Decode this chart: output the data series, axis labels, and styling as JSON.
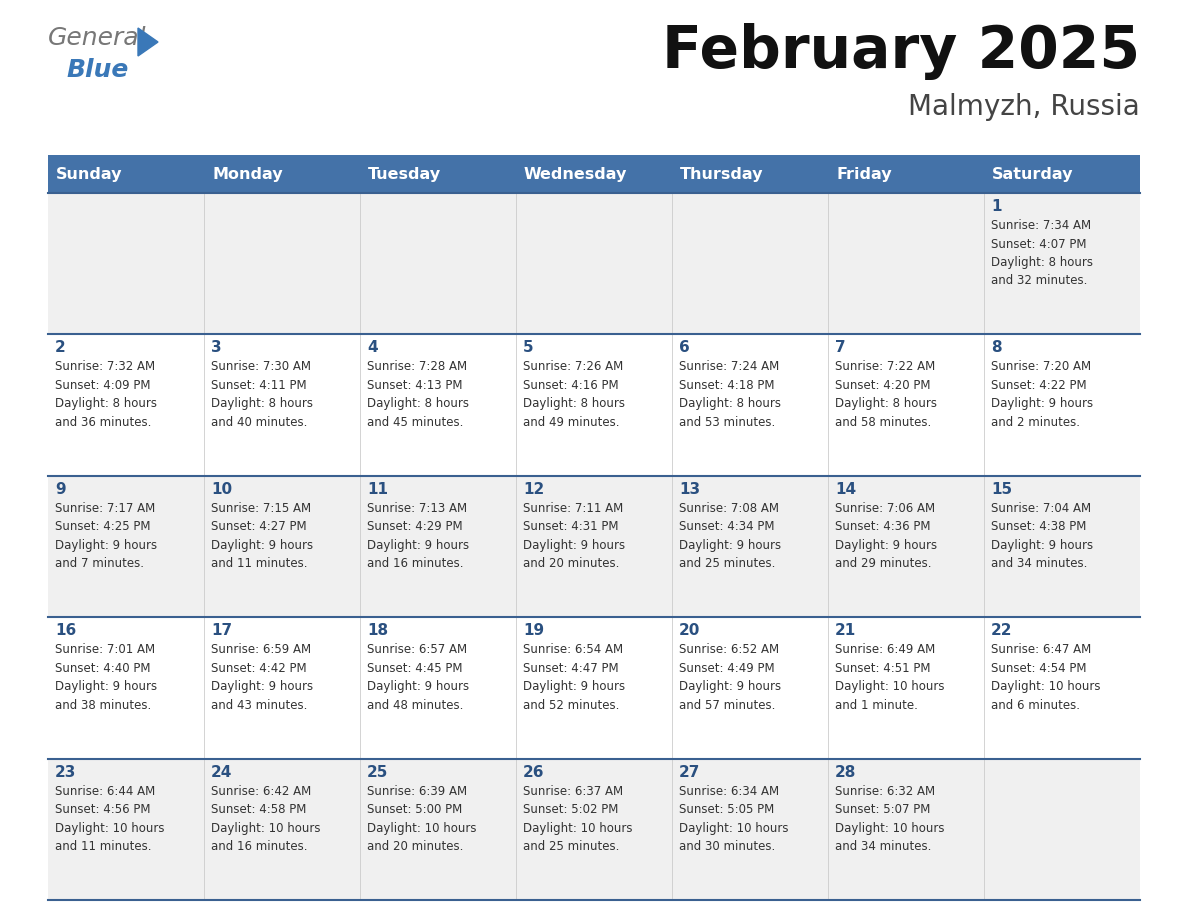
{
  "title": "February 2025",
  "subtitle": "Malmyzh, Russia",
  "days_of_week": [
    "Sunday",
    "Monday",
    "Tuesday",
    "Wednesday",
    "Thursday",
    "Friday",
    "Saturday"
  ],
  "header_bg": "#4472a8",
  "header_text": "#ffffff",
  "row_bg_odd": "#f0f0f0",
  "row_bg_even": "#ffffff",
  "border_color": "#3a6090",
  "day_number_color": "#2a5080",
  "info_text_color": "#333333",
  "title_color": "#111111",
  "subtitle_color": "#444444",
  "logo_general_color": "#666666",
  "logo_blue_color": "#3a78b8",
  "logo_triangle_color": "#3a78b8",
  "weeks": [
    {
      "days": [
        {
          "date": "",
          "info": ""
        },
        {
          "date": "",
          "info": ""
        },
        {
          "date": "",
          "info": ""
        },
        {
          "date": "",
          "info": ""
        },
        {
          "date": "",
          "info": ""
        },
        {
          "date": "",
          "info": ""
        },
        {
          "date": "1",
          "info": "Sunrise: 7:34 AM\nSunset: 4:07 PM\nDaylight: 8 hours\nand 32 minutes."
        }
      ]
    },
    {
      "days": [
        {
          "date": "2",
          "info": "Sunrise: 7:32 AM\nSunset: 4:09 PM\nDaylight: 8 hours\nand 36 minutes."
        },
        {
          "date": "3",
          "info": "Sunrise: 7:30 AM\nSunset: 4:11 PM\nDaylight: 8 hours\nand 40 minutes."
        },
        {
          "date": "4",
          "info": "Sunrise: 7:28 AM\nSunset: 4:13 PM\nDaylight: 8 hours\nand 45 minutes."
        },
        {
          "date": "5",
          "info": "Sunrise: 7:26 AM\nSunset: 4:16 PM\nDaylight: 8 hours\nand 49 minutes."
        },
        {
          "date": "6",
          "info": "Sunrise: 7:24 AM\nSunset: 4:18 PM\nDaylight: 8 hours\nand 53 minutes."
        },
        {
          "date": "7",
          "info": "Sunrise: 7:22 AM\nSunset: 4:20 PM\nDaylight: 8 hours\nand 58 minutes."
        },
        {
          "date": "8",
          "info": "Sunrise: 7:20 AM\nSunset: 4:22 PM\nDaylight: 9 hours\nand 2 minutes."
        }
      ]
    },
    {
      "days": [
        {
          "date": "9",
          "info": "Sunrise: 7:17 AM\nSunset: 4:25 PM\nDaylight: 9 hours\nand 7 minutes."
        },
        {
          "date": "10",
          "info": "Sunrise: 7:15 AM\nSunset: 4:27 PM\nDaylight: 9 hours\nand 11 minutes."
        },
        {
          "date": "11",
          "info": "Sunrise: 7:13 AM\nSunset: 4:29 PM\nDaylight: 9 hours\nand 16 minutes."
        },
        {
          "date": "12",
          "info": "Sunrise: 7:11 AM\nSunset: 4:31 PM\nDaylight: 9 hours\nand 20 minutes."
        },
        {
          "date": "13",
          "info": "Sunrise: 7:08 AM\nSunset: 4:34 PM\nDaylight: 9 hours\nand 25 minutes."
        },
        {
          "date": "14",
          "info": "Sunrise: 7:06 AM\nSunset: 4:36 PM\nDaylight: 9 hours\nand 29 minutes."
        },
        {
          "date": "15",
          "info": "Sunrise: 7:04 AM\nSunset: 4:38 PM\nDaylight: 9 hours\nand 34 minutes."
        }
      ]
    },
    {
      "days": [
        {
          "date": "16",
          "info": "Sunrise: 7:01 AM\nSunset: 4:40 PM\nDaylight: 9 hours\nand 38 minutes."
        },
        {
          "date": "17",
          "info": "Sunrise: 6:59 AM\nSunset: 4:42 PM\nDaylight: 9 hours\nand 43 minutes."
        },
        {
          "date": "18",
          "info": "Sunrise: 6:57 AM\nSunset: 4:45 PM\nDaylight: 9 hours\nand 48 minutes."
        },
        {
          "date": "19",
          "info": "Sunrise: 6:54 AM\nSunset: 4:47 PM\nDaylight: 9 hours\nand 52 minutes."
        },
        {
          "date": "20",
          "info": "Sunrise: 6:52 AM\nSunset: 4:49 PM\nDaylight: 9 hours\nand 57 minutes."
        },
        {
          "date": "21",
          "info": "Sunrise: 6:49 AM\nSunset: 4:51 PM\nDaylight: 10 hours\nand 1 minute."
        },
        {
          "date": "22",
          "info": "Sunrise: 6:47 AM\nSunset: 4:54 PM\nDaylight: 10 hours\nand 6 minutes."
        }
      ]
    },
    {
      "days": [
        {
          "date": "23",
          "info": "Sunrise: 6:44 AM\nSunset: 4:56 PM\nDaylight: 10 hours\nand 11 minutes."
        },
        {
          "date": "24",
          "info": "Sunrise: 6:42 AM\nSunset: 4:58 PM\nDaylight: 10 hours\nand 16 minutes."
        },
        {
          "date": "25",
          "info": "Sunrise: 6:39 AM\nSunset: 5:00 PM\nDaylight: 10 hours\nand 20 minutes."
        },
        {
          "date": "26",
          "info": "Sunrise: 6:37 AM\nSunset: 5:02 PM\nDaylight: 10 hours\nand 25 minutes."
        },
        {
          "date": "27",
          "info": "Sunrise: 6:34 AM\nSunset: 5:05 PM\nDaylight: 10 hours\nand 30 minutes."
        },
        {
          "date": "28",
          "info": "Sunrise: 6:32 AM\nSunset: 5:07 PM\nDaylight: 10 hours\nand 34 minutes."
        },
        {
          "date": "",
          "info": ""
        }
      ]
    }
  ]
}
